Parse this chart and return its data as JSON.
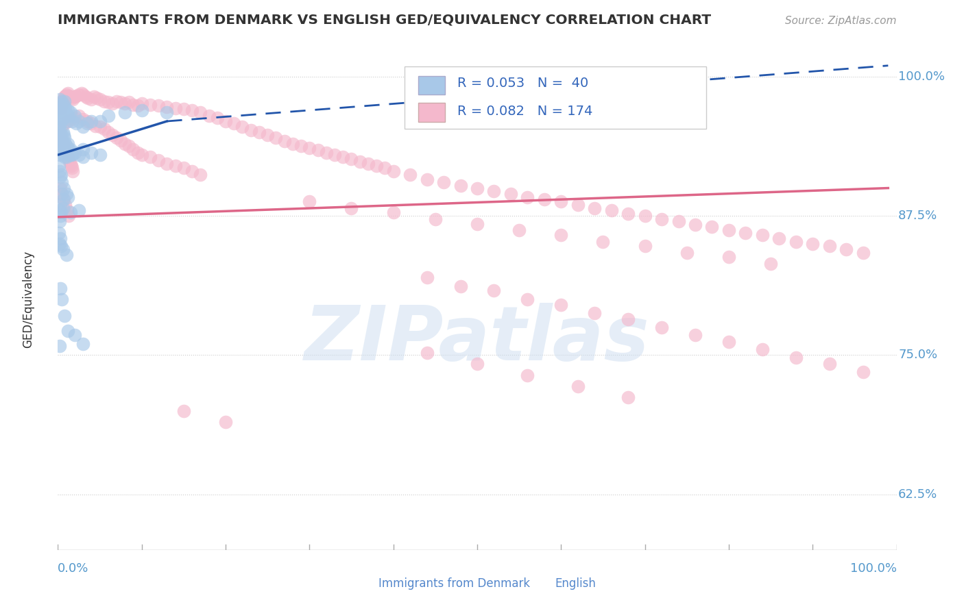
{
  "title": "IMMIGRANTS FROM DENMARK VS ENGLISH GED/EQUIVALENCY CORRELATION CHART",
  "source": "Source: ZipAtlas.com",
  "ylabel": "GED/Equivalency",
  "watermark": "ZIPatlas",
  "xmin": 0.0,
  "xmax": 1.0,
  "ymin": 0.575,
  "ymax": 1.025,
  "yticks": [
    0.625,
    0.75,
    0.875,
    1.0
  ],
  "ytick_labels": [
    "62.5%",
    "75.0%",
    "87.5%",
    "100.0%"
  ],
  "xtick_labels": [
    "0.0%",
    "100.0%"
  ],
  "blue_color": "#a8c8e8",
  "pink_color": "#f4b8cc",
  "blue_line_color": "#2255aa",
  "pink_line_color": "#dd6688",
  "blue_line_solid": [
    [
      0.001,
      0.13
    ],
    [
      0.93,
      0.96
    ]
  ],
  "blue_line_dash": [
    [
      0.13,
      0.99
    ],
    [
      0.96,
      1.01
    ]
  ],
  "pink_line": [
    [
      0.001,
      0.99
    ],
    [
      0.874,
      0.9
    ]
  ],
  "blue_x": [
    0.001,
    0.001,
    0.002,
    0.002,
    0.003,
    0.003,
    0.003,
    0.004,
    0.004,
    0.005,
    0.005,
    0.006,
    0.006,
    0.007,
    0.007,
    0.008,
    0.008,
    0.009,
    0.01,
    0.011,
    0.012,
    0.013,
    0.015,
    0.017,
    0.02,
    0.022,
    0.025,
    0.03,
    0.035,
    0.04,
    0.05,
    0.06,
    0.08,
    0.1,
    0.13,
    0.002,
    0.004,
    0.008,
    0.015,
    0.03
  ],
  "blue_y": [
    0.965,
    0.955,
    0.98,
    0.96,
    0.975,
    0.968,
    0.958,
    0.97,
    0.962,
    0.978,
    0.968,
    0.972,
    0.962,
    0.975,
    0.965,
    0.978,
    0.968,
    0.972,
    0.96,
    0.965,
    0.97,
    0.965,
    0.968,
    0.96,
    0.965,
    0.958,
    0.96,
    0.955,
    0.958,
    0.96,
    0.96,
    0.965,
    0.968,
    0.97,
    0.968,
    0.93,
    0.935,
    0.928,
    0.93,
    0.935
  ],
  "blue_outlier_x": [
    0.001,
    0.001,
    0.002,
    0.002,
    0.003,
    0.003,
    0.004,
    0.004,
    0.005,
    0.005,
    0.006,
    0.006,
    0.006,
    0.007,
    0.007,
    0.008,
    0.008,
    0.009,
    0.009,
    0.01,
    0.01,
    0.011,
    0.012,
    0.013,
    0.014,
    0.015,
    0.017,
    0.02,
    0.025,
    0.03,
    0.04,
    0.05,
    0.002,
    0.003,
    0.004,
    0.006,
    0.002,
    0.003,
    0.015,
    0.025
  ],
  "blue_outlier_y": [
    0.948,
    0.938,
    0.945,
    0.935,
    0.95,
    0.94,
    0.948,
    0.938,
    0.945,
    0.935,
    0.95,
    0.94,
    0.93,
    0.948,
    0.938,
    0.945,
    0.935,
    0.94,
    0.93,
    0.938,
    0.928,
    0.935,
    0.94,
    0.935,
    0.93,
    0.935,
    0.93,
    0.932,
    0.93,
    0.928,
    0.932,
    0.93,
    0.88,
    0.885,
    0.878,
    0.882,
    0.87,
    0.875,
    0.878,
    0.88
  ],
  "blue_low_x": [
    0.001,
    0.002,
    0.003,
    0.004,
    0.005,
    0.005,
    0.007,
    0.01,
    0.012,
    0.006
  ],
  "blue_low_y": [
    0.92,
    0.915,
    0.91,
    0.912,
    0.905,
    0.895,
    0.9,
    0.895,
    0.892,
    0.89
  ],
  "blue_very_low_x": [
    0.001,
    0.003,
    0.002,
    0.004,
    0.006,
    0.01,
    0.002
  ],
  "blue_very_low_y": [
    0.86,
    0.855,
    0.85,
    0.848,
    0.845,
    0.84,
    0.758
  ],
  "blue_spread_x": [
    0.003,
    0.005,
    0.008,
    0.012,
    0.02,
    0.03
  ],
  "blue_spread_y": [
    0.81,
    0.8,
    0.785,
    0.772,
    0.768,
    0.76
  ],
  "pink_x": [
    0.003,
    0.004,
    0.005,
    0.006,
    0.007,
    0.008,
    0.009,
    0.01,
    0.012,
    0.013,
    0.015,
    0.017,
    0.018,
    0.02,
    0.022,
    0.025,
    0.028,
    0.03,
    0.033,
    0.036,
    0.04,
    0.043,
    0.046,
    0.05,
    0.055,
    0.06,
    0.065,
    0.07,
    0.075,
    0.08,
    0.085,
    0.09,
    0.095,
    0.1,
    0.11,
    0.12,
    0.13,
    0.14,
    0.15,
    0.16,
    0.17,
    0.18,
    0.19,
    0.2,
    0.21,
    0.22,
    0.23,
    0.24,
    0.25,
    0.26,
    0.005,
    0.008,
    0.012,
    0.015,
    0.02,
    0.025,
    0.03,
    0.035,
    0.04,
    0.045,
    0.05,
    0.055,
    0.06,
    0.065,
    0.07,
    0.075,
    0.08,
    0.085,
    0.09,
    0.095,
    0.1,
    0.11,
    0.12,
    0.13,
    0.14,
    0.15,
    0.16,
    0.17,
    0.003,
    0.004,
    0.005,
    0.006,
    0.007,
    0.008,
    0.009,
    0.01,
    0.011,
    0.012,
    0.013,
    0.014,
    0.015,
    0.016,
    0.017,
    0.018,
    0.003,
    0.005,
    0.007,
    0.009,
    0.011,
    0.013,
    0.27,
    0.28,
    0.29,
    0.3,
    0.31,
    0.32,
    0.33,
    0.34,
    0.35,
    0.36,
    0.37,
    0.38,
    0.39,
    0.4,
    0.42,
    0.44,
    0.46,
    0.48,
    0.5,
    0.52,
    0.54,
    0.56,
    0.58,
    0.6,
    0.62,
    0.64,
    0.66,
    0.68,
    0.7,
    0.72,
    0.74,
    0.76,
    0.78,
    0.8,
    0.82,
    0.84,
    0.86,
    0.88,
    0.9,
    0.92,
    0.94,
    0.96,
    0.44,
    0.48,
    0.52,
    0.56,
    0.6,
    0.64,
    0.68,
    0.72,
    0.76,
    0.8,
    0.84,
    0.88,
    0.92,
    0.96,
    0.3,
    0.35,
    0.4,
    0.45,
    0.5,
    0.55,
    0.6,
    0.65,
    0.7,
    0.75,
    0.8,
    0.85,
    0.44,
    0.5,
    0.56,
    0.62,
    0.68,
    0.15,
    0.2
  ],
  "pink_y": [
    0.968,
    0.972,
    0.975,
    0.978,
    0.98,
    0.982,
    0.983,
    0.984,
    0.985,
    0.983,
    0.982,
    0.981,
    0.98,
    0.982,
    0.983,
    0.984,
    0.985,
    0.984,
    0.982,
    0.981,
    0.98,
    0.982,
    0.981,
    0.98,
    0.978,
    0.977,
    0.976,
    0.978,
    0.977,
    0.976,
    0.977,
    0.975,
    0.974,
    0.976,
    0.975,
    0.974,
    0.973,
    0.972,
    0.971,
    0.97,
    0.968,
    0.965,
    0.963,
    0.96,
    0.958,
    0.955,
    0.952,
    0.95,
    0.948,
    0.945,
    0.955,
    0.958,
    0.96,
    0.962,
    0.963,
    0.965,
    0.962,
    0.96,
    0.958,
    0.956,
    0.955,
    0.953,
    0.95,
    0.948,
    0.945,
    0.943,
    0.94,
    0.938,
    0.935,
    0.932,
    0.93,
    0.928,
    0.925,
    0.922,
    0.92,
    0.918,
    0.915,
    0.912,
    0.948,
    0.945,
    0.942,
    0.94,
    0.938,
    0.936,
    0.934,
    0.932,
    0.93,
    0.928,
    0.926,
    0.924,
    0.922,
    0.92,
    0.918,
    0.915,
    0.9,
    0.895,
    0.89,
    0.885,
    0.88,
    0.875,
    0.942,
    0.94,
    0.938,
    0.936,
    0.934,
    0.932,
    0.93,
    0.928,
    0.926,
    0.924,
    0.922,
    0.92,
    0.918,
    0.915,
    0.912,
    0.908,
    0.905,
    0.902,
    0.9,
    0.897,
    0.895,
    0.892,
    0.89,
    0.888,
    0.885,
    0.882,
    0.88,
    0.877,
    0.875,
    0.872,
    0.87,
    0.867,
    0.865,
    0.862,
    0.86,
    0.858,
    0.855,
    0.852,
    0.85,
    0.848,
    0.845,
    0.842,
    0.82,
    0.812,
    0.808,
    0.8,
    0.795,
    0.788,
    0.782,
    0.775,
    0.768,
    0.762,
    0.755,
    0.748,
    0.742,
    0.735,
    0.888,
    0.882,
    0.878,
    0.872,
    0.868,
    0.862,
    0.858,
    0.852,
    0.848,
    0.842,
    0.838,
    0.832,
    0.752,
    0.742,
    0.732,
    0.722,
    0.712,
    0.7,
    0.69
  ]
}
